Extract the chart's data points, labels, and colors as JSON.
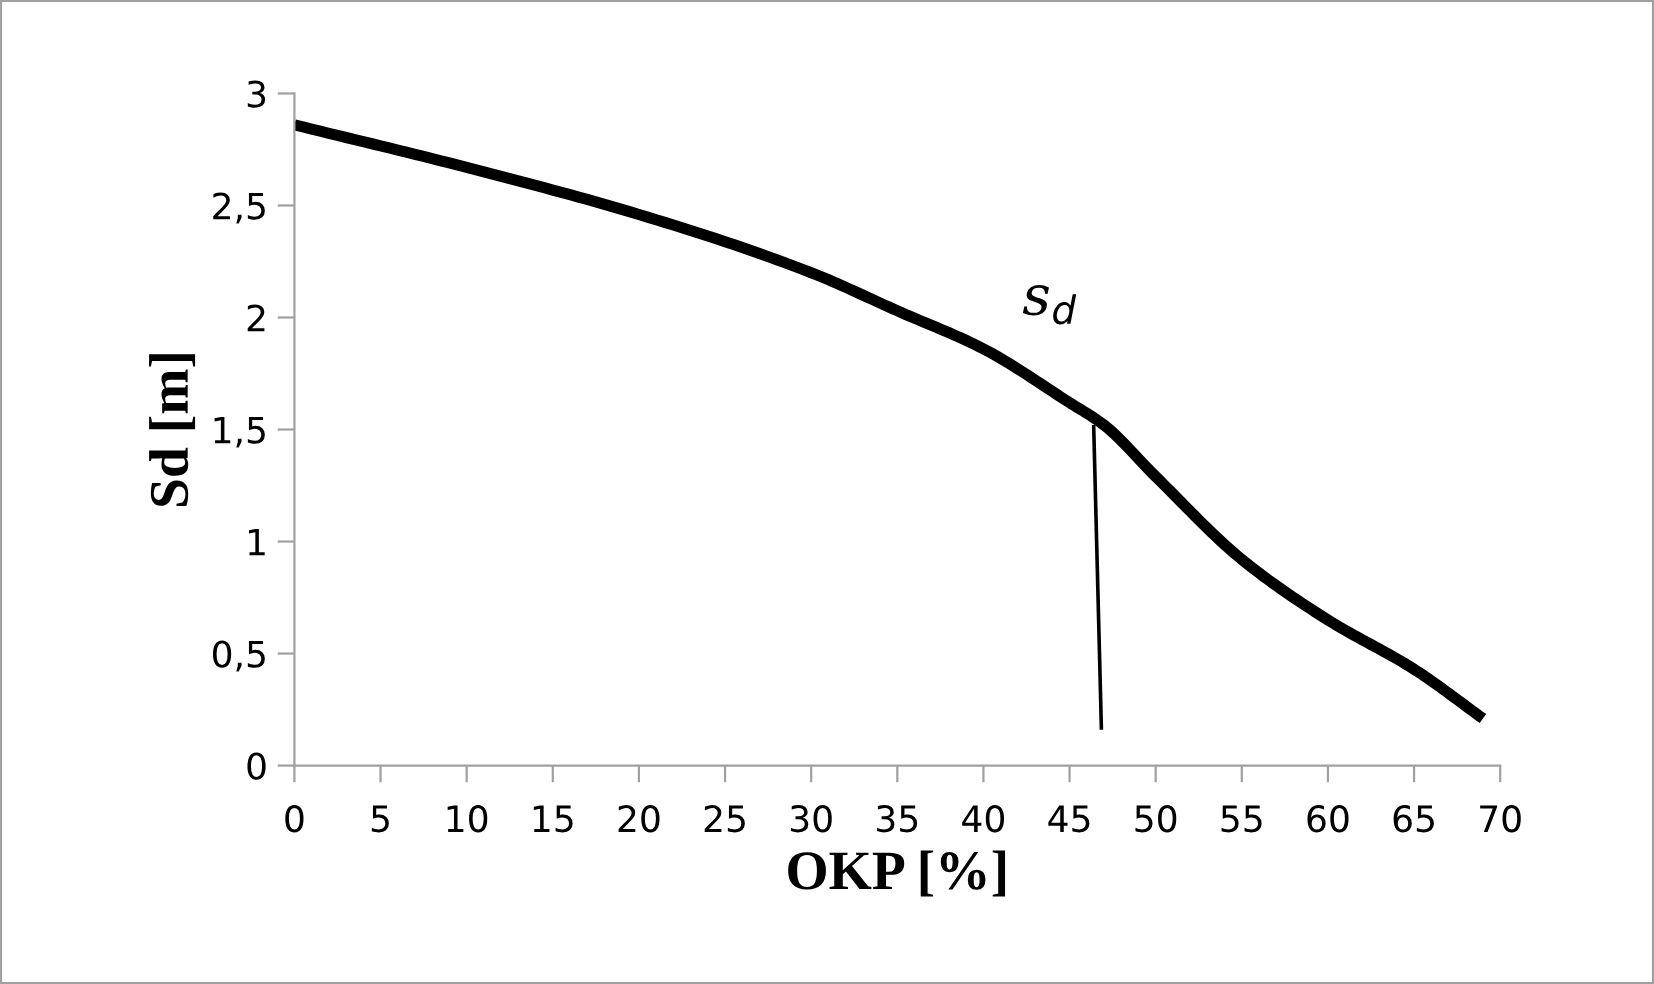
{
  "chart_data": {
    "type": "line",
    "xlabel": "OKP [%]",
    "ylabel": "Sd [m]",
    "xlim": [
      0,
      70
    ],
    "ylim": [
      0,
      3
    ],
    "xticks": [
      0,
      5,
      10,
      15,
      20,
      25,
      30,
      35,
      40,
      45,
      50,
      55,
      60,
      65,
      70
    ],
    "yticks": [
      0,
      {
        "value": 0.5,
        "label": "0,5"
      },
      1,
      {
        "value": 1.5,
        "label": "1,5"
      },
      2,
      {
        "value": 2.5,
        "label": "2,5"
      },
      3
    ],
    "series": [
      {
        "name": "s$_{d}$",
        "color": "#000000",
        "x": [
          0,
          10,
          20,
          30,
          35,
          40,
          45,
          47,
          50,
          55,
          60,
          65,
          69
        ],
        "values": [
          2.86,
          2.67,
          2.46,
          2.2,
          2.03,
          1.86,
          1.62,
          1.52,
          1.29,
          0.92,
          0.65,
          0.43,
          0.21
        ]
      },
      {
        "color": "#000000",
        "type": "line",
        "x": [
          46.4,
          46.85
        ],
        "values": [
          1.52,
          0.16
        ]
      }
    ],
    "grid": false,
    "legend": false,
    "marker": "none",
    "line_style": "solid"
  }
}
